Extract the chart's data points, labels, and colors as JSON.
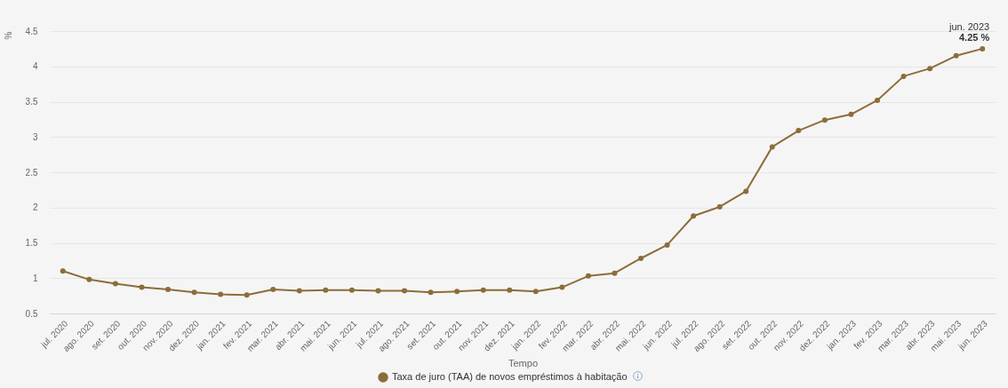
{
  "chart_data": {
    "type": "line",
    "xlabel": "Tempo",
    "ylabel": "%",
    "categories": [
      "jul. 2020",
      "ago. 2020",
      "set. 2020",
      "out. 2020",
      "nov. 2020",
      "dez. 2020",
      "jan. 2021",
      "fev. 2021",
      "mar. 2021",
      "abr. 2021",
      "mai. 2021",
      "jun. 2021",
      "jul. 2021",
      "ago. 2021",
      "set. 2021",
      "out. 2021",
      "nov. 2021",
      "dez. 2021",
      "jan. 2022",
      "fev. 2022",
      "mar. 2022",
      "abr. 2022",
      "mai. 2022",
      "jun. 2022",
      "jul. 2022",
      "ago. 2022",
      "set. 2022",
      "out. 2022",
      "nov. 2022",
      "dez. 2022",
      "jan. 2023",
      "fev. 2023",
      "mar. 2023",
      "abr. 2023",
      "mai. 2023",
      "jun. 2023"
    ],
    "series": [
      {
        "name": "Taxa de juro (TAA) de novos empréstimos à habitação",
        "color": "#8c6d3a",
        "values": [
          1.1,
          0.98,
          0.92,
          0.87,
          0.84,
          0.8,
          0.77,
          0.76,
          0.84,
          0.82,
          0.83,
          0.83,
          0.82,
          0.82,
          0.8,
          0.81,
          0.83,
          0.83,
          0.81,
          0.87,
          1.03,
          1.07,
          1.28,
          1.47,
          1.88,
          2.01,
          2.23,
          2.86,
          3.09,
          3.24,
          3.32,
          3.52,
          3.86,
          3.97,
          4.15,
          4.25
        ]
      }
    ],
    "ylim": [
      0.5,
      4.5
    ],
    "yticks": [
      0.5,
      1,
      1.5,
      2,
      2.5,
      3,
      3.5,
      4,
      4.5
    ],
    "grid": "y",
    "legend": "bottom",
    "marker": "circle",
    "line_style": "solid",
    "annotations": [
      {
        "text": "jun. 2023",
        "x": "jun. 2023",
        "y": 4.25
      },
      {
        "text": "4.25 %",
        "x": "jun. 2023",
        "y": 4.25
      }
    ]
  }
}
